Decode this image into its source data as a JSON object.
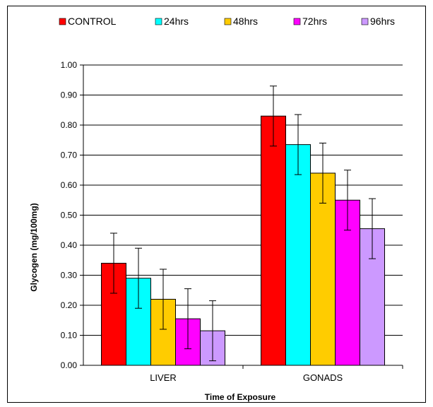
{
  "chart_data": {
    "type": "bar",
    "title": "",
    "xlabel": "Time of Exposure",
    "ylabel": "Glycogen (mg/100mg)",
    "ylim": [
      0,
      1.0
    ],
    "yticks": [
      "0.00",
      "0.10",
      "0.20",
      "0.30",
      "0.40",
      "0.50",
      "0.60",
      "0.70",
      "0.80",
      "0.90",
      "1.00"
    ],
    "categories": [
      "LIVER",
      "GONADS"
    ],
    "legend_position": "top",
    "grid": true,
    "series": [
      {
        "name": "CONTROL",
        "color": "#ff0000",
        "values": [
          0.34,
          0.83
        ],
        "errors": [
          0.1,
          0.1
        ]
      },
      {
        "name": "24hrs",
        "color": "#00ffff",
        "values": [
          0.29,
          0.735
        ],
        "errors": [
          0.1,
          0.1
        ]
      },
      {
        "name": "48hrs",
        "color": "#ffcc00",
        "values": [
          0.22,
          0.64
        ],
        "errors": [
          0.1,
          0.1
        ]
      },
      {
        "name": "72hrs",
        "color": "#ff00ff",
        "values": [
          0.155,
          0.55
        ],
        "errors": [
          0.1,
          0.1
        ]
      },
      {
        "name": "96hrs",
        "color": "#cc99ff",
        "values": [
          0.115,
          0.455
        ],
        "errors": [
          0.1,
          0.1
        ]
      }
    ]
  }
}
